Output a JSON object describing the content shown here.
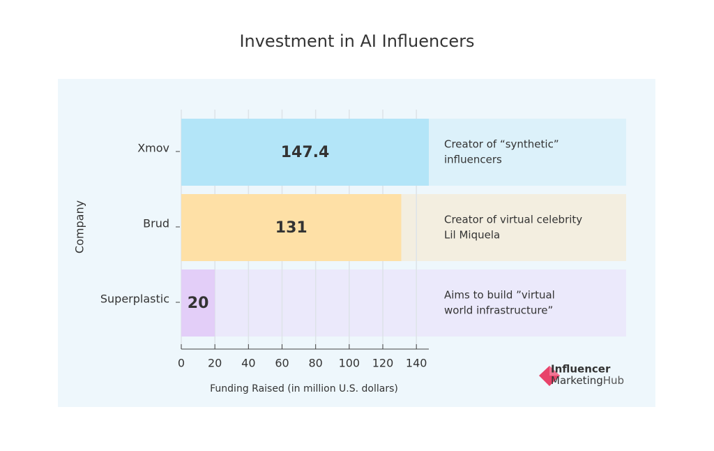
{
  "chart_data": {
    "type": "hbar",
    "title": "Investment in AI Influencers",
    "categories": [
      "Xmov",
      "Brud",
      "Superplastic"
    ],
    "values": [
      147.4,
      131,
      20
    ],
    "colors": [
      "#b3e5f8",
      "#fee0a6",
      "#e3cef8"
    ],
    "row_colors": [
      "#dcf1fa",
      "#f3eee0",
      "#ebe9fb"
    ],
    "annotations": [
      [
        "Creator of “synthetic”",
        "influencers"
      ],
      [
        "Creator of virtual celebrity",
        "Lil Miquela"
      ],
      [
        "Aims to build ”virtual",
        "world infrastructure”"
      ]
    ],
    "xlabel": "Funding Raised (in million U.S. dollars)",
    "ylabel": "Company",
    "xlim": [
      0,
      147.4
    ],
    "xticks": [
      0,
      20,
      40,
      60,
      80,
      100,
      120,
      140
    ],
    "grid": true
  },
  "logo": {
    "line1": "Influencer",
    "line2a": "Marketing",
    "line2b": "Hub"
  }
}
